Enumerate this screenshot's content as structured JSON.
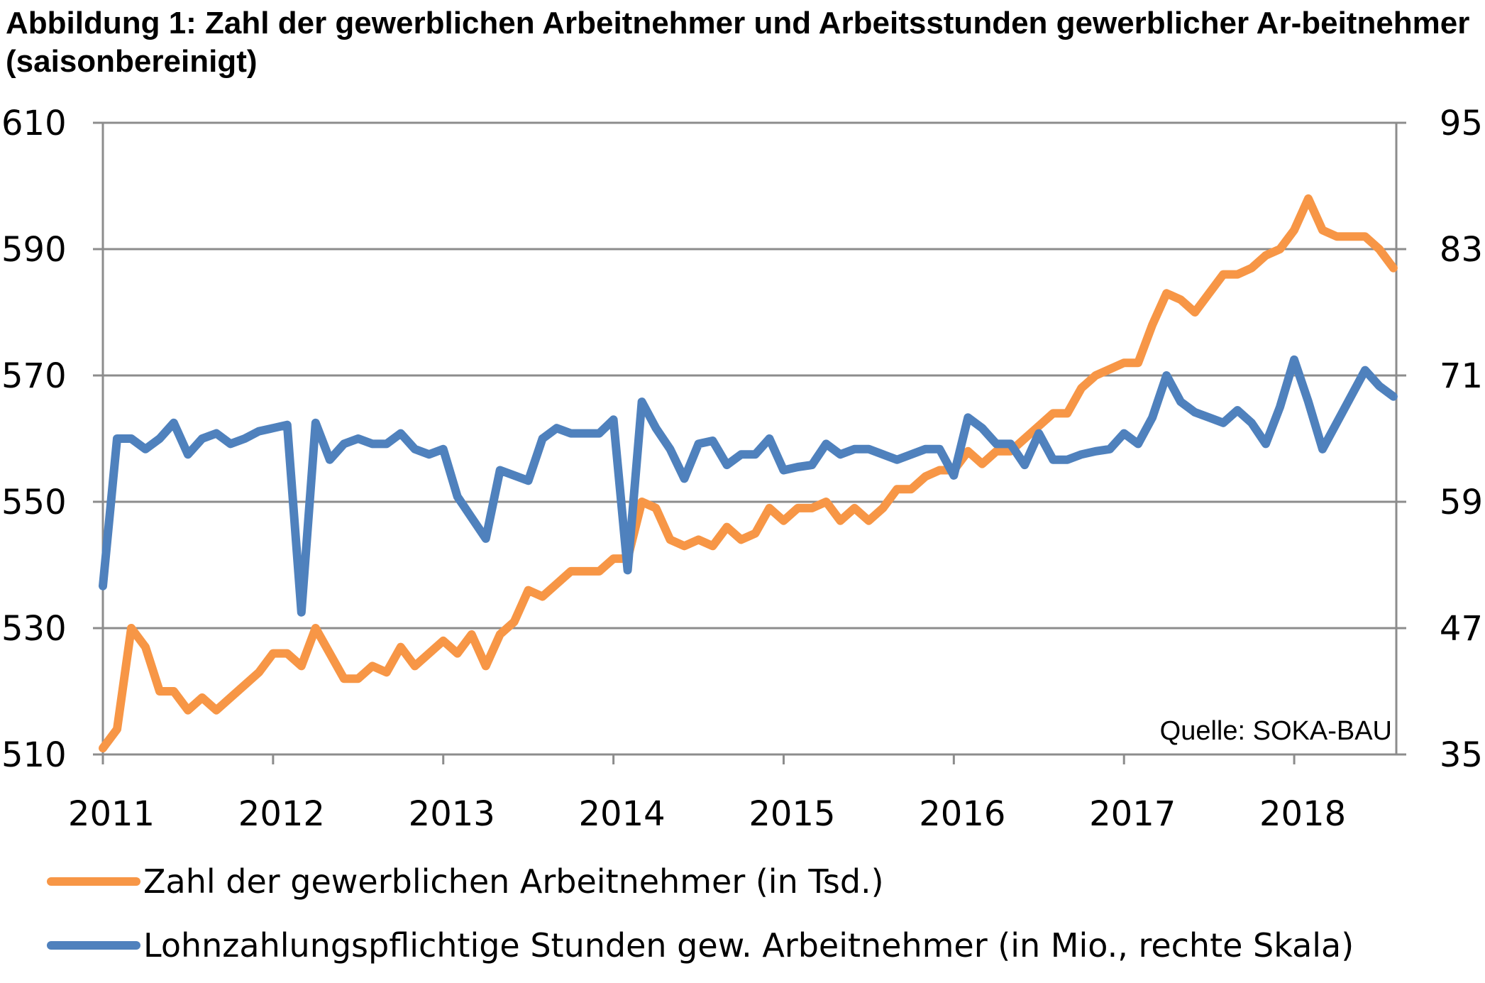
{
  "title": "Abbildung 1: Zahl der gewerblichen Arbeitnehmer und Arbeitsstunden gewerblicher Ar-beitnehmer (saisonbereinigt)",
  "source": "Quelle: SOKA-BAU",
  "chart_data": {
    "type": "line",
    "x_start": 2011,
    "x_step": 0.08333,
    "xlim": [
      2011,
      2018.6
    ],
    "x_ticks": [
      "2011",
      "2012",
      "2013",
      "2014",
      "2015",
      "2016",
      "2017",
      "2018"
    ],
    "ylim_left": [
      510,
      610
    ],
    "y_ticks_left": [
      "510",
      "530",
      "550",
      "570",
      "590",
      "610"
    ],
    "ylim_right": [
      35,
      95
    ],
    "y_ticks_right": [
      "35",
      "47",
      "59",
      "71",
      "83",
      "95"
    ],
    "grid": true,
    "legend_position": "bottom",
    "series": [
      {
        "name": "Zahl der gewerblichen Arbeitnehmer (in Tsd.)",
        "axis": "left",
        "color": "#F79646",
        "values": [
          511,
          514,
          530,
          527,
          520,
          520,
          517,
          519,
          517,
          519,
          521,
          523,
          526,
          526,
          524,
          530,
          526,
          522,
          522,
          524,
          523,
          527,
          524,
          526,
          528,
          526,
          529,
          524,
          529,
          531,
          536,
          535,
          537,
          539,
          539,
          539,
          541,
          541,
          550,
          549,
          544,
          543,
          544,
          543,
          546,
          544,
          545,
          549,
          547,
          549,
          549,
          550,
          547,
          549,
          547,
          549,
          552,
          552,
          554,
          555,
          555,
          558,
          556,
          558,
          558,
          560,
          562,
          564,
          564,
          568,
          570,
          571,
          572,
          572,
          578,
          583,
          582,
          580,
          583,
          586,
          586,
          587,
          589,
          590,
          593,
          598,
          593,
          592,
          592,
          592,
          590,
          587
        ]
      },
      {
        "name": "Lohnzahlungspflichtige Stunden gew. Arbeitnehmer (in Mio., rechte Skala)",
        "axis": "right",
        "color": "#4F81BD",
        "values": [
          51,
          65,
          65,
          64,
          65,
          66.5,
          63.5,
          65,
          65.5,
          64.5,
          65,
          65.7,
          66,
          66.3,
          48.5,
          66.5,
          63,
          64.5,
          65,
          64.5,
          64.5,
          65.5,
          64,
          63.5,
          64,
          59.5,
          57.5,
          55.5,
          62,
          61.5,
          61,
          65,
          66,
          65.5,
          65.5,
          65.5,
          66.8,
          52.5,
          68.5,
          66,
          64,
          61.2,
          64.5,
          64.8,
          62.5,
          63.5,
          63.5,
          65,
          62,
          62.3,
          62.5,
          64.5,
          63.5,
          64,
          64,
          63.5,
          63,
          63.5,
          64,
          64,
          61.5,
          67,
          66,
          64.5,
          64.5,
          62.5,
          65.5,
          63,
          63,
          63.5,
          63.8,
          64,
          65.5,
          64.5,
          67,
          71,
          68.5,
          67.5,
          67,
          66.5,
          67.7,
          66.5,
          64.5,
          68,
          72.5,
          68.5,
          64,
          66.5,
          69,
          71.5,
          70,
          69
        ]
      }
    ]
  }
}
